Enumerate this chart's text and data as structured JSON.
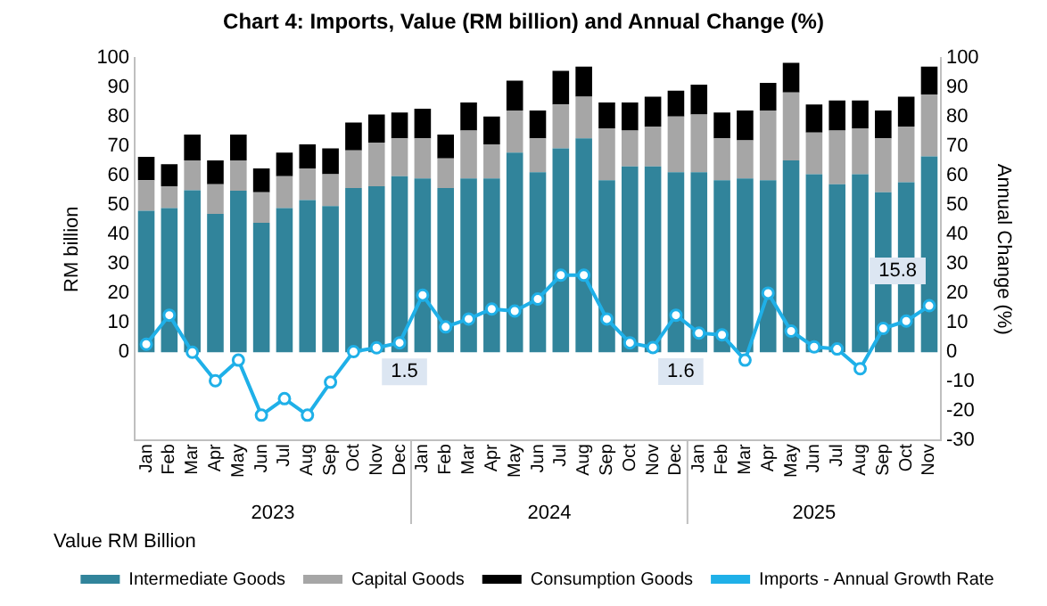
{
  "chart_data": {
    "type": "bar",
    "title": "Chart 4: Imports, Value (RM billion) and Annual Change (%)",
    "ylabel": "RM billion",
    "y2label": "Annual Change (%)",
    "categories": [
      "Jan",
      "Feb",
      "Mar",
      "Apr",
      "May",
      "Jun",
      "Jul",
      "Aug",
      "Sep",
      "Oct",
      "Nov",
      "Dec",
      "Jan",
      "Feb",
      "Mar",
      "Apr",
      "May",
      "Jun",
      "Jul",
      "Aug",
      "Sep",
      "Oct",
      "Nov",
      "Dec",
      "Jan",
      "Feb",
      "Mar",
      "Apr",
      "May",
      "Jun",
      "Jul",
      "Aug",
      "Sep",
      "Oct",
      "Nov"
    ],
    "stacked": true,
    "ylim": [
      -30,
      100
    ],
    "yticks": [
      0,
      10,
      20,
      30,
      40,
      50,
      60,
      70,
      80,
      90,
      100
    ],
    "y2lim": [
      -30,
      100
    ],
    "y2ticks": [
      -30,
      -20,
      -10,
      0,
      10,
      20,
      30,
      40,
      50,
      60,
      70,
      80,
      90,
      100
    ],
    "series": [
      {
        "name": "Intermediate Goods",
        "color": "#31849b",
        "values": [
          48.1,
          49,
          55.1,
          47,
          54.9,
          44,
          49,
          51.7,
          49.7,
          55.8,
          56.4,
          59.8,
          59.1,
          55.8,
          59.1,
          59.1,
          67.9,
          61.2,
          69.3,
          72.7,
          58.5,
          63.2,
          63.2,
          61.2,
          61.2,
          58.5,
          59.1,
          58.5,
          65.2,
          60.5,
          57.1,
          60.5,
          54.4,
          57.8,
          66.6
        ]
      },
      {
        "name": "Capital Goods",
        "color": "#a6a6a6",
        "values": [
          10.4,
          7.4,
          10.1,
          10.1,
          10.3,
          10.4,
          10.8,
          10.8,
          10.8,
          12.8,
          14.9,
          12.9,
          13.6,
          10.1,
          16.3,
          11.6,
          14.3,
          11.5,
          14.9,
          14.2,
          17.6,
          12.2,
          13.5,
          18.9,
          19.6,
          14.2,
          12.9,
          23.7,
          23.1,
          14.2,
          18.3,
          15.6,
          18.3,
          18.9,
          21
        ]
      },
      {
        "name": "Consumption Goods",
        "color": "#000000",
        "values": [
          7.9,
          7.5,
          8.8,
          8.1,
          8.8,
          8.1,
          8.1,
          8.2,
          8.8,
          9.5,
          9.5,
          8.8,
          10.1,
          8.1,
          9.5,
          9.4,
          10.1,
          9.5,
          11.5,
          10.2,
          8.8,
          9.5,
          10.2,
          8.8,
          10.2,
          8.8,
          10.2,
          9.4,
          10.1,
          9.5,
          10.2,
          9.5,
          9.5,
          10.2,
          9.5
        ]
      },
      {
        "name": "Imports - Annual Growth Rate",
        "type": "line",
        "axis": "y2",
        "color": "#1fb0e8",
        "marker": "circle",
        "values": [
          2.7,
          12.6,
          0,
          -9.7,
          -2.7,
          -21.4,
          -15.8,
          -21.4,
          -10.2,
          0.2,
          1.5,
          3.2,
          19.4,
          8.6,
          11.3,
          14.7,
          14,
          18.1,
          26.2,
          26.2,
          11.3,
          3.2,
          1.6,
          12.6,
          6.5,
          5.9,
          -2.7,
          20.1,
          7.2,
          1.8,
          1.1,
          -5.6,
          8.1,
          10.6,
          15.8
        ],
        "value_labels": [
          null,
          null,
          null,
          null,
          null,
          null,
          null,
          null,
          null,
          null,
          "1.5",
          null,
          null,
          null,
          null,
          null,
          null,
          null,
          null,
          null,
          null,
          null,
          "1.6",
          null,
          null,
          null,
          null,
          null,
          null,
          null,
          null,
          null,
          null,
          null,
          "15.8"
        ]
      }
    ],
    "annotations": [
      "2023",
      "2024",
      "2025",
      "Value RM Billion"
    ],
    "grid": false,
    "legend": "bottom"
  }
}
